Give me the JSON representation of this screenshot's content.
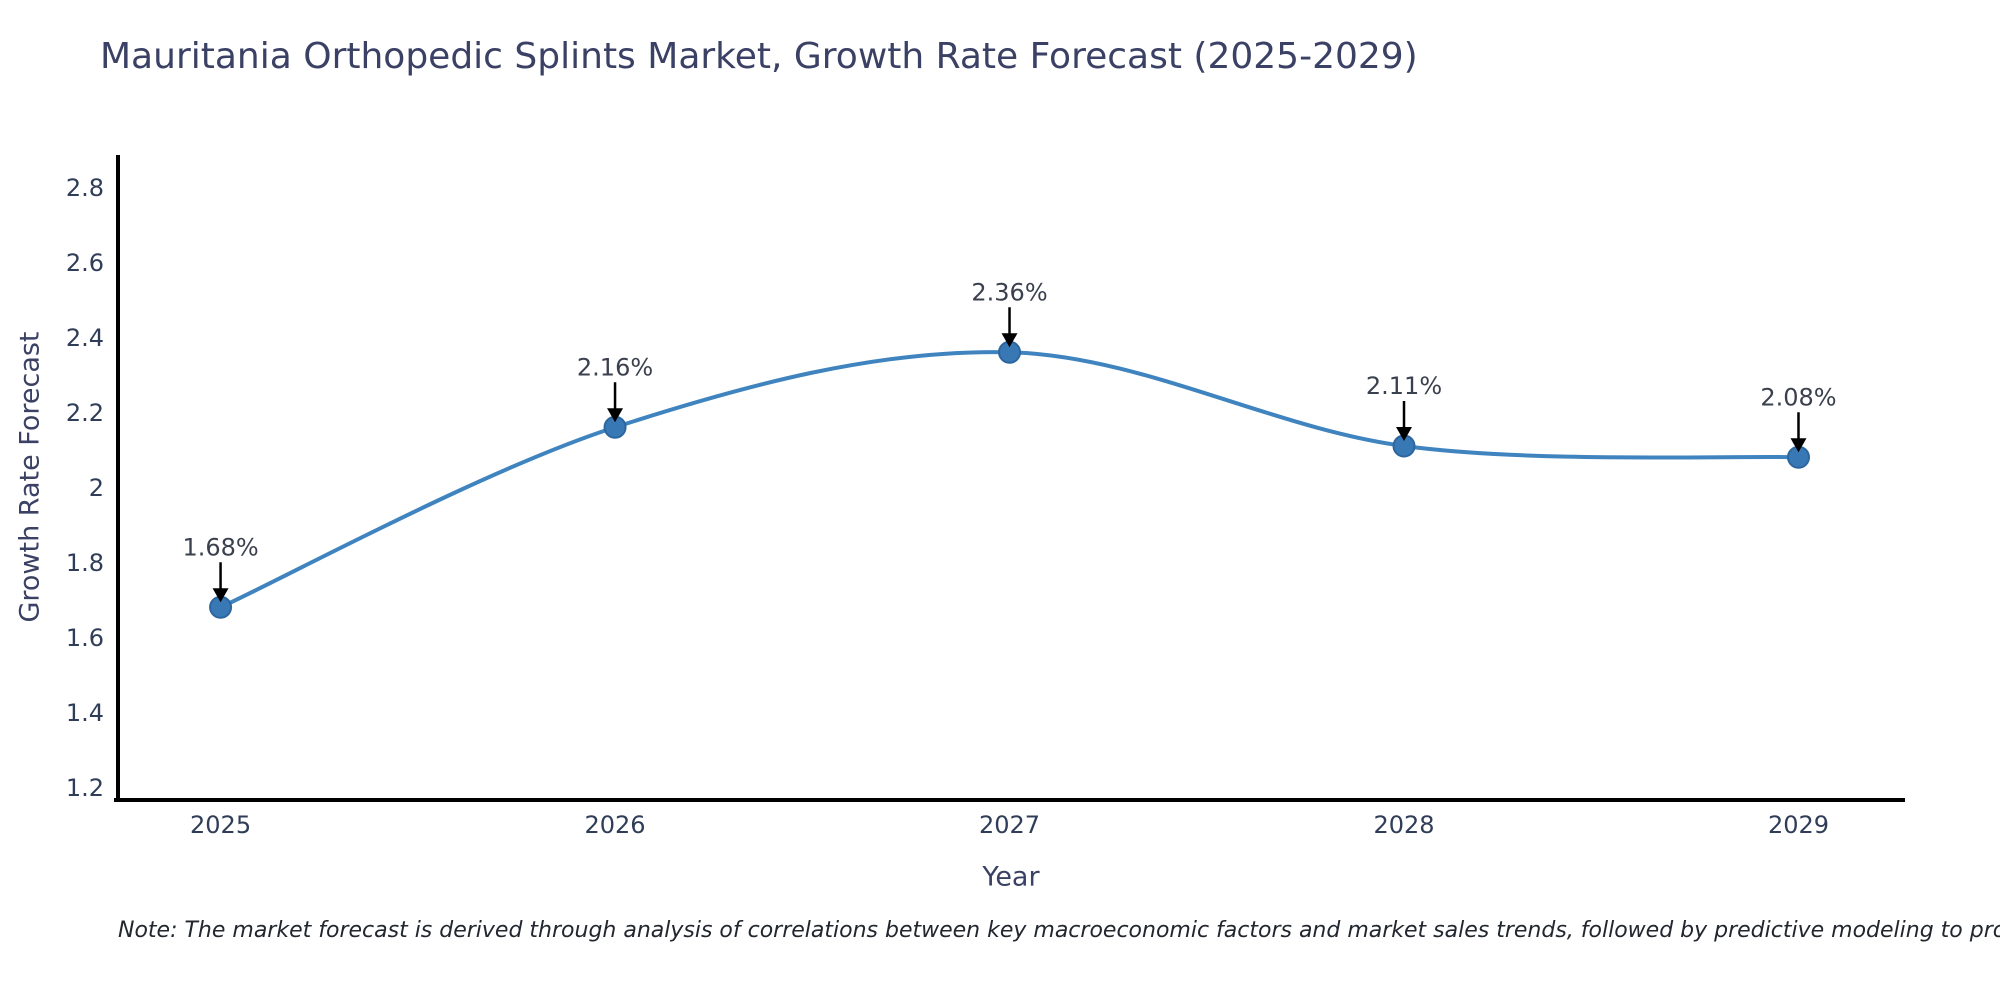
{
  "chart_data": {
    "type": "line",
    "title": "Mauritania Orthopedic Splints Market, Growth Rate Forecast (2025-2029)",
    "xlabel": "Year",
    "ylabel": "Growth Rate Forecast",
    "x": [
      2025,
      2026,
      2027,
      2028,
      2029
    ],
    "series": [
      {
        "name": "Growth Rate Forecast",
        "values": [
          1.68,
          2.16,
          2.36,
          2.11,
          2.08
        ]
      }
    ],
    "point_labels": [
      "1.68%",
      "2.16%",
      "2.36%",
      "2.11%",
      "2.08%"
    ],
    "y_ticks": [
      1.2,
      1.4,
      1.6,
      1.8,
      2,
      2.2,
      2.4,
      2.6,
      2.8
    ],
    "ylim": [
      1.166,
      2.886
    ],
    "xlim": [
      2024.74,
      2029.27
    ],
    "grid": false,
    "legend": "none",
    "line_shape": "spline",
    "marker_style": "circle",
    "annotation_style": "label-with-down-arrow",
    "colors": {
      "line": "#3f84bf",
      "marker_fill": "#3878b4",
      "marker_edge": "#2d669e",
      "axis_line": "#000000",
      "tick_text": "#2f3d58",
      "title_text": "#3b4164",
      "annotation_text": "#3a404d",
      "arrow": "#000000",
      "background": "#ffffff"
    }
  },
  "footer": {
    "note": "Note: The market forecast is derived through analysis of correlations between key macroeconomic factors and market sales trends, followed by predictive modeling to project future sales"
  }
}
